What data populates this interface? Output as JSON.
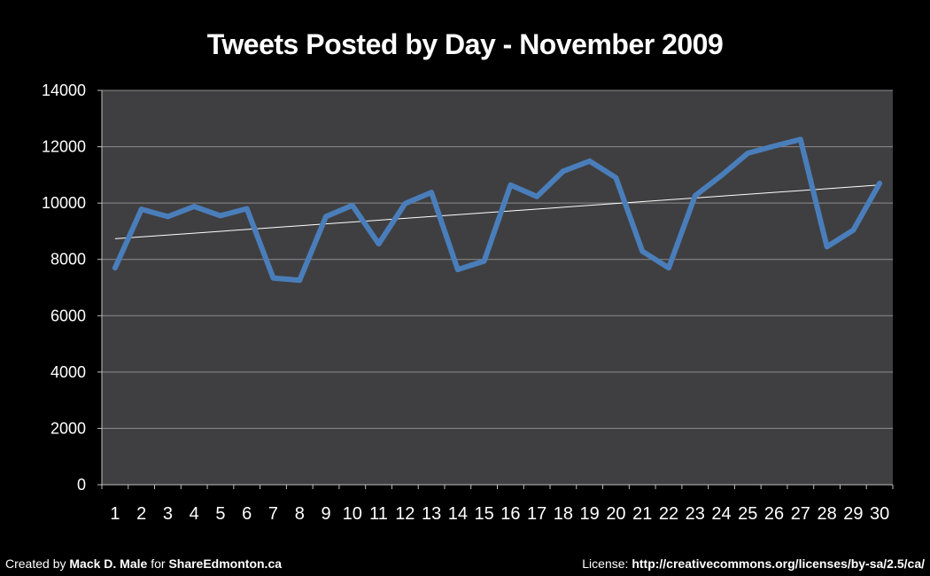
{
  "chart_data": {
    "type": "line",
    "title": "Tweets Posted by Day - November 2009",
    "xlabel": "",
    "ylabel": "",
    "ylim": [
      0,
      14000
    ],
    "yticks": [
      0,
      2000,
      4000,
      6000,
      8000,
      10000,
      12000,
      14000
    ],
    "categories": [
      "1",
      "2",
      "3",
      "4",
      "5",
      "6",
      "7",
      "8",
      "9",
      "10",
      "11",
      "12",
      "13",
      "14",
      "15",
      "16",
      "17",
      "18",
      "19",
      "20",
      "21",
      "22",
      "23",
      "24",
      "25",
      "26",
      "27",
      "28",
      "29",
      "30"
    ],
    "series": [
      {
        "values": [
          7700,
          9780,
          9520,
          9880,
          9550,
          9800,
          7340,
          7260,
          9520,
          9920,
          8550,
          9980,
          10380,
          7640,
          7940,
          10640,
          10230,
          11130,
          11490,
          10900,
          8290,
          7700,
          10260,
          10980,
          11770,
          12020,
          12260,
          8450,
          9040,
          10700
        ],
        "color": "#4a7ebb"
      }
    ],
    "trendline": {
      "type": "linear",
      "color": "#ffffff"
    },
    "grid": true,
    "legend": "none",
    "plot_background": "#3f3f41"
  },
  "footer": {
    "left_prefix": "Created by ",
    "left_author": "Mack D. Male",
    "left_middle": " for ",
    "left_site": "ShareEdmonton.ca",
    "right_prefix": "License: ",
    "right_url": "http://creativecommons.org/licenses/by-sa/2.5/ca/"
  }
}
